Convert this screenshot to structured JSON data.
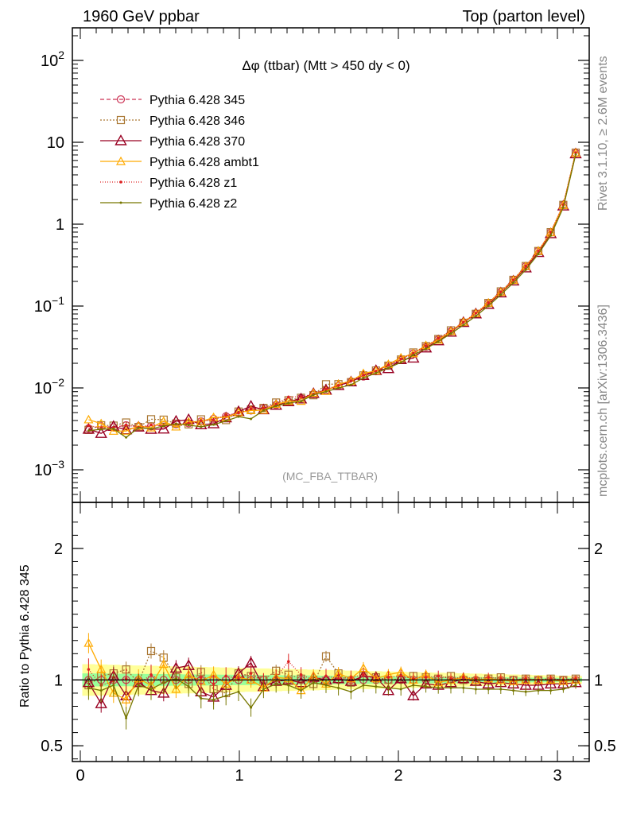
{
  "header": {
    "left": "1960 GeV ppbar",
    "right": "Top (parton level)"
  },
  "plot_title": "Δφ (ttbar) (Mtt > 450 dy < 0)",
  "side_labels": {
    "rivet": "Rivet 3.1.10, ≥ 2.6M events",
    "mcplots": "mcplots.cern.ch [arXiv:1306.3436]"
  },
  "watermark": "(MC_FBA_TTBAR)",
  "ratio_ylabel": "Ratio to Pythia 6.428 345",
  "main_yticks": [
    {
      "v": 0.001,
      "label": "10",
      "sup": "−3"
    },
    {
      "v": 0.01,
      "label": "10",
      "sup": "−2"
    },
    {
      "v": 0.1,
      "label": "10",
      "sup": "−1"
    },
    {
      "v": 1,
      "label": "1",
      "sup": ""
    },
    {
      "v": 10,
      "label": "10",
      "sup": ""
    },
    {
      "v": 100,
      "label": "10",
      "sup": "2"
    }
  ],
  "ratio_yticks": [
    {
      "v": 0.5,
      "label": "0.5"
    },
    {
      "v": 1,
      "label": "1"
    },
    {
      "v": 2,
      "label": "2"
    }
  ],
  "xticks": [
    {
      "v": 0,
      "label": "0"
    },
    {
      "v": 1,
      "label": "1"
    },
    {
      "v": 2,
      "label": "2"
    },
    {
      "v": 3,
      "label": "3"
    }
  ],
  "chart_data": {
    "type": "line",
    "title": "Δφ (ttbar) (Mtt > 450 dy < 0)",
    "xlim": [
      -0.05,
      3.2
    ],
    "ylim": [
      0.0004,
      250
    ],
    "yscale": "log",
    "ratio_ylim": [
      0.38,
      2.35
    ],
    "legend_position": "top-left",
    "x": [
      0.052,
      0.131,
      0.209,
      0.288,
      0.366,
      0.445,
      0.524,
      0.602,
      0.681,
      0.759,
      0.838,
      0.916,
      0.995,
      1.073,
      1.152,
      1.231,
      1.309,
      1.388,
      1.466,
      1.545,
      1.623,
      1.702,
      1.78,
      1.859,
      1.937,
      2.016,
      2.094,
      2.173,
      2.251,
      2.33,
      2.409,
      2.487,
      2.566,
      2.644,
      2.723,
      2.801,
      2.88,
      2.958,
      3.037,
      3.115
    ],
    "reference": [
      0.0032,
      0.0034,
      0.0033,
      0.0035,
      0.0034,
      0.0034,
      0.0035,
      0.0036,
      0.0037,
      0.0039,
      0.0042,
      0.0045,
      0.0049,
      0.0053,
      0.0057,
      0.0062,
      0.0068,
      0.0075,
      0.0084,
      0.0094,
      0.0106,
      0.012,
      0.0138,
      0.016,
      0.0187,
      0.022,
      0.0263,
      0.0318,
      0.0392,
      0.049,
      0.0625,
      0.0812,
      0.108,
      0.148,
      0.209,
      0.305,
      0.47,
      0.79,
      1.72,
      7.4
    ],
    "series": [
      {
        "name": "Pythia 6.428 345",
        "color": "#cc3355",
        "dash": "5,3",
        "marker": "circle",
        "ratio": [
          1,
          1,
          1,
          1,
          1,
          1,
          1,
          1,
          1,
          1,
          1,
          1,
          1,
          1,
          1,
          1,
          1,
          1,
          1,
          1,
          1,
          1,
          1,
          1,
          1,
          1,
          1,
          1,
          1,
          1,
          1,
          1,
          1,
          1,
          1,
          1,
          1,
          1,
          1,
          1
        ]
      },
      {
        "name": "Pythia 6.428 346",
        "color": "#aa7733",
        "dash": "2,2",
        "marker": "square",
        "ratio": [
          0.96,
          1.03,
          1.05,
          1.08,
          0.98,
          1.22,
          1.17,
          1.02,
          0.97,
          1.06,
          0.93,
          0.9,
          1.05,
          1.03,
          1.0,
          1.07,
          1.04,
          1.01,
          0.97,
          1.18,
          1.05,
          0.98,
          1.03,
          1.02,
          1.0,
          1.01,
          1.03,
          1.02,
          1.01,
          1.03,
          1.0,
          0.99,
          1.01,
          1.02,
          1.0,
          1.01,
          1.0,
          1.01,
          1.0,
          1.01
        ]
      },
      {
        "name": "Pythia 6.428 370",
        "color": "#990022",
        "dash": "",
        "marker": "triangle",
        "ratio": [
          0.98,
          0.82,
          1.03,
          0.88,
          0.98,
          0.92,
          0.9,
          1.09,
          1.11,
          0.91,
          0.87,
          0.96,
          1.05,
          1.13,
          0.95,
          0.99,
          1.0,
          0.98,
          1.02,
          1.0,
          1.01,
          0.99,
          1.03,
          1.02,
          0.92,
          1.01,
          0.88,
          0.97,
          0.96,
          0.98,
          1.01,
          0.99,
          0.97,
          0.98,
          0.97,
          0.96,
          0.96,
          0.97,
          0.97,
          0.98
        ]
      },
      {
        "name": "Pythia 6.428 ambt1",
        "color": "#ffaa00",
        "dash": "",
        "marker": "triangle-open",
        "ratio": [
          1.28,
          1.08,
          0.9,
          0.85,
          1.01,
          0.96,
          1.12,
          0.93,
          1.04,
          0.99,
          1.04,
          0.97,
          1.02,
          1.0,
          0.94,
          1.02,
          1.01,
          0.92,
          1.03,
          0.97,
          1.05,
          1.01,
          1.09,
          1.01,
          1.04,
          1.06,
          1.0,
          1.04,
          0.98,
          1.0,
          1.02,
          1.0,
          1.01,
          1.0,
          0.99,
          1.0,
          1.0,
          1.0,
          0.99,
          1.0
        ]
      },
      {
        "name": "Pythia 6.428 z1",
        "color": "#dd2222",
        "dash": "1,2",
        "marker": "dot",
        "ratio": [
          1.08,
          0.96,
          0.99,
          1.01,
          0.97,
          1.04,
          0.98,
          1.01,
          1.0,
          1.02,
          0.97,
          1.03,
          1.01,
          1.05,
          0.99,
          1.02,
          1.14,
          1.04,
          1.0,
          1.03,
          1.01,
          1.02,
          1.04,
          1.0,
          1.02,
          1.03,
          1.01,
          1.02,
          1.03,
          1.01,
          1.02,
          1.01,
          1.02,
          1.01,
          1.0,
          1.01,
          1.0,
          1.01,
          1.0,
          1.01
        ]
      },
      {
        "name": "Pythia 6.428 z2",
        "color": "#777700",
        "dash": "",
        "marker": "small-dot",
        "ratio": [
          0.94,
          0.92,
          0.96,
          0.71,
          0.96,
          0.93,
          0.98,
          1.01,
          0.95,
          0.86,
          0.85,
          0.88,
          0.91,
          0.79,
          0.93,
          0.97,
          0.96,
          0.92,
          0.98,
          0.96,
          0.94,
          0.91,
          0.96,
          0.95,
          0.94,
          0.93,
          0.96,
          0.95,
          0.94,
          0.94,
          0.94,
          0.93,
          0.93,
          0.93,
          0.92,
          0.91,
          0.92,
          0.92,
          0.93,
          0.96
        ]
      }
    ]
  }
}
